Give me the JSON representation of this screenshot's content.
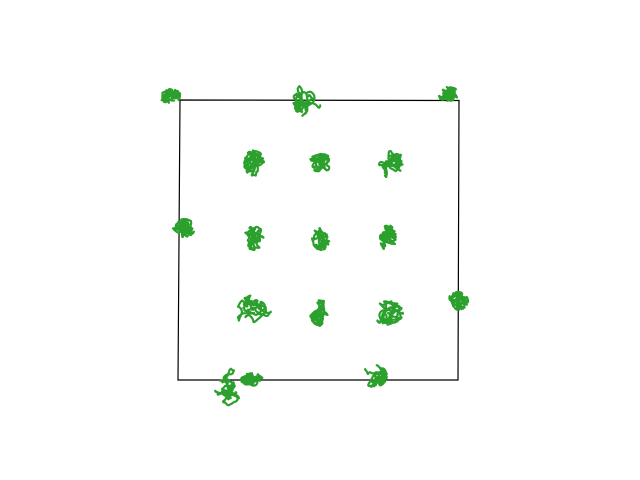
{
  "diagram": {
    "kind": "random-walk-trajectories",
    "box_color": "#000000",
    "trajectory_color": "#2ca02c",
    "grid": {
      "rows": 5,
      "cols": 5,
      "omitted_cells": [
        [
          0,
          1
        ],
        [
          0,
          3
        ],
        [
          1,
          0
        ],
        [
          1,
          4
        ],
        [
          2,
          4
        ],
        [
          3,
          0
        ],
        [
          4,
          2
        ],
        [
          4,
          4
        ]
      ]
    }
  }
}
